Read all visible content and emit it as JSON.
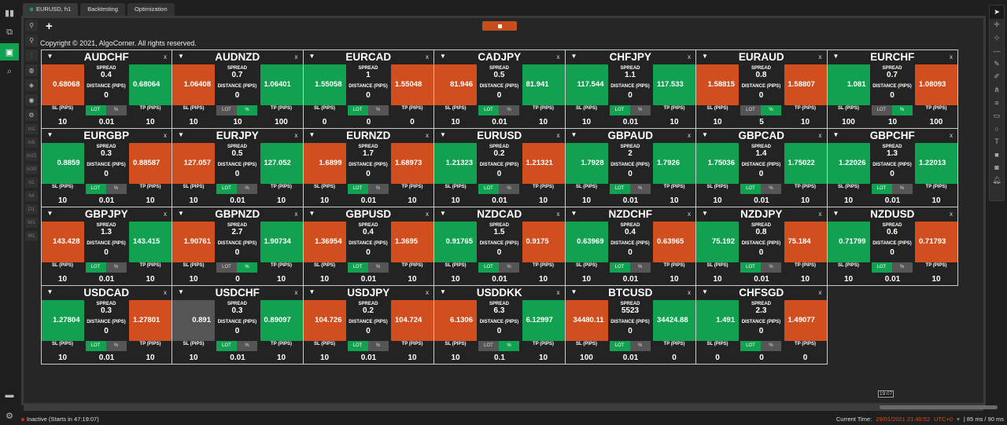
{
  "app": {
    "sidebar_icons": [
      "chart-icon",
      "copy-icon",
      "robot-icon",
      "search-chart-icon"
    ],
    "bottom_icons": [
      "briefcase-icon",
      "gear-icon"
    ]
  },
  "tabs": [
    {
      "label": "EURUSD, h1",
      "active": true
    },
    {
      "label": "Backtesting"
    },
    {
      "label": "Optimization"
    }
  ],
  "toolbar": {
    "timeframes": [
      "m1",
      "m5",
      "m15",
      "m30",
      "h1",
      "h4",
      "D1",
      "W1",
      "M1"
    ],
    "add_label": "+"
  },
  "copyright": "Copyright © 2021, AlgoCorner. All rights reserved.",
  "labels": {
    "spread": "SPREAD",
    "distance": "DISTANCE (PIPS)",
    "sl": "SL (PIPS)",
    "tp": "TP (PIPS)",
    "lot": "LOT",
    "pct": "%",
    "close": "x",
    "menu": "▼"
  },
  "colors": {
    "orange": "#d14f1f",
    "green": "#12a150",
    "gray": "#555555"
  },
  "cards": [
    {
      "symbol": "AUDCHF",
      "sell": "0.68068",
      "sell_color": "orange",
      "spread": "0.4",
      "distance": "0",
      "buy": "0.68064",
      "buy_color": "green",
      "sl": "10",
      "size": "0.01",
      "tp": "10",
      "mode": "lot"
    },
    {
      "symbol": "AUDNZD",
      "sell": "1.06408",
      "sell_color": "orange",
      "spread": "0.7",
      "distance": "0",
      "buy": "1.06401",
      "buy_color": "green",
      "sl": "10",
      "size": "10",
      "tp": "100",
      "mode": "pct"
    },
    {
      "symbol": "EURCAD",
      "sell": "1.55058",
      "sell_color": "green",
      "spread": "1",
      "distance": "0",
      "buy": "1.55048",
      "buy_color": "orange",
      "sl": "0",
      "size": "0",
      "tp": "0",
      "mode": "lot"
    },
    {
      "symbol": "CADJPY",
      "sell": "81.946",
      "sell_color": "orange",
      "spread": "0.5",
      "distance": "0",
      "buy": "81.941",
      "buy_color": "green",
      "sl": "10",
      "size": "0.01",
      "tp": "10",
      "mode": "lot"
    },
    {
      "symbol": "CHFJPY",
      "sell": "117.544",
      "sell_color": "green",
      "spread": "1.1",
      "distance": "0",
      "buy": "117.533",
      "buy_color": "green",
      "sl": "10",
      "size": "0.01",
      "tp": "10",
      "mode": "lot"
    },
    {
      "symbol": "EURAUD",
      "sell": "1.58815",
      "sell_color": "orange",
      "spread": "0.8",
      "distance": "0",
      "buy": "1.58807",
      "buy_color": "orange",
      "sl": "10",
      "size": "5",
      "tp": "10",
      "mode": "pct"
    },
    {
      "symbol": "EURCHF",
      "sell": "1.081",
      "sell_color": "green",
      "spread": "0.7",
      "distance": "0",
      "buy": "1.08093",
      "buy_color": "orange",
      "sl": "100",
      "size": "10",
      "tp": "100",
      "mode": "pct"
    },
    {
      "symbol": "EURGBP",
      "sell": "0.8859",
      "sell_color": "green",
      "spread": "0.3",
      "distance": "0",
      "buy": "0.88587",
      "buy_color": "orange",
      "sl": "10",
      "size": "0.01",
      "tp": "10",
      "mode": "lot"
    },
    {
      "symbol": "EURJPY",
      "sell": "127.057",
      "sell_color": "orange",
      "spread": "0.5",
      "distance": "0",
      "buy": "127.052",
      "buy_color": "green",
      "sl": "10",
      "size": "0.01",
      "tp": "10",
      "mode": "lot"
    },
    {
      "symbol": "EURNZD",
      "sell": "1.6899",
      "sell_color": "orange",
      "spread": "1.7",
      "distance": "0",
      "buy": "1.68973",
      "buy_color": "orange",
      "sl": "10",
      "size": "0.01",
      "tp": "10",
      "mode": "lot"
    },
    {
      "symbol": "EURUSD",
      "sell": "1.21323",
      "sell_color": "green",
      "spread": "0.2",
      "distance": "0",
      "buy": "1.21321",
      "buy_color": "orange",
      "sl": "10",
      "size": "0.01",
      "tp": "10",
      "mode": "lot"
    },
    {
      "symbol": "GBPAUD",
      "sell": "1.7928",
      "sell_color": "green",
      "spread": "2",
      "distance": "0",
      "buy": "1.7926",
      "buy_color": "green",
      "sl": "10",
      "size": "0.01",
      "tp": "10",
      "mode": "lot"
    },
    {
      "symbol": "GBPCAD",
      "sell": "1.75036",
      "sell_color": "green",
      "spread": "1.4",
      "distance": "0",
      "buy": "1.75022",
      "buy_color": "green",
      "sl": "10",
      "size": "0.01",
      "tp": "10",
      "mode": "lot"
    },
    {
      "symbol": "GBPCHF",
      "sell": "1.22026",
      "sell_color": "green",
      "spread": "1.3",
      "distance": "0",
      "buy": "1.22013",
      "buy_color": "green",
      "sl": "10",
      "size": "0.01",
      "tp": "10",
      "mode": "lot"
    },
    {
      "symbol": "GBPJPY",
      "sell": "143.428",
      "sell_color": "orange",
      "spread": "1.3",
      "distance": "0",
      "buy": "143.415",
      "buy_color": "green",
      "sl": "10",
      "size": "0.01",
      "tp": "10",
      "mode": "lot"
    },
    {
      "symbol": "GBPNZD",
      "sell": "1.90761",
      "sell_color": "orange",
      "spread": "2.7",
      "distance": "0",
      "buy": "1.90734",
      "buy_color": "green",
      "sl": "10",
      "size": "0",
      "tp": "10",
      "mode": "pct"
    },
    {
      "symbol": "GBPUSD",
      "sell": "1.36954",
      "sell_color": "orange",
      "spread": "0.4",
      "distance": "0",
      "buy": "1.3695",
      "buy_color": "orange",
      "sl": "10",
      "size": "0.01",
      "tp": "10",
      "mode": "lot"
    },
    {
      "symbol": "NZDCAD",
      "sell": "0.91765",
      "sell_color": "green",
      "spread": "1.5",
      "distance": "0",
      "buy": "0.9175",
      "buy_color": "orange",
      "sl": "10",
      "size": "0.01",
      "tp": "10",
      "mode": "lot"
    },
    {
      "symbol": "NZDCHF",
      "sell": "0.63969",
      "sell_color": "green",
      "spread": "0.4",
      "distance": "0",
      "buy": "0.63965",
      "buy_color": "orange",
      "sl": "10",
      "size": "0.01",
      "tp": "10",
      "mode": "lot"
    },
    {
      "symbol": "NZDJPY",
      "sell": "75.192",
      "sell_color": "green",
      "spread": "0.8",
      "distance": "0",
      "buy": "75.184",
      "buy_color": "orange",
      "sl": "10",
      "size": "0.01",
      "tp": "10",
      "mode": "lot"
    },
    {
      "symbol": "NZDUSD",
      "sell": "0.71799",
      "sell_color": "green",
      "spread": "0.6",
      "distance": "0",
      "buy": "0.71793",
      "buy_color": "orange",
      "sl": "10",
      "size": "0.01",
      "tp": "10",
      "mode": "lot"
    },
    {
      "symbol": "USDCAD",
      "sell": "1.27804",
      "sell_color": "green",
      "spread": "0.3",
      "distance": "0",
      "buy": "1.27801",
      "buy_color": "orange",
      "sl": "10",
      "size": "0.01",
      "tp": "10",
      "mode": "lot"
    },
    {
      "symbol": "USDCHF",
      "sell": "0.891",
      "sell_color": "gray",
      "spread": "0.3",
      "distance": "0",
      "buy": "0.89097",
      "buy_color": "green",
      "sl": "10",
      "size": "0.01",
      "tp": "10",
      "mode": "lot"
    },
    {
      "symbol": "USDJPY",
      "sell": "104.726",
      "sell_color": "orange",
      "spread": "0.2",
      "distance": "0",
      "buy": "104.724",
      "buy_color": "orange",
      "sl": "10",
      "size": "0.01",
      "tp": "10",
      "mode": "lot"
    },
    {
      "symbol": "USDDKK",
      "sell": "6.1306",
      "sell_color": "orange",
      "spread": "6.3",
      "distance": "0",
      "buy": "6.12997",
      "buy_color": "green",
      "sl": "10",
      "size": "0.1",
      "tp": "10",
      "mode": "pct"
    },
    {
      "symbol": "BTCUSD",
      "sell": "34480.11",
      "sell_color": "orange",
      "spread": "5523",
      "distance": "0",
      "buy": "34424.88",
      "buy_color": "green",
      "sl": "100",
      "size": "0.01",
      "tp": "0",
      "mode": "lot"
    },
    {
      "symbol": "CHFSGD",
      "sell": "1.491",
      "sell_color": "green",
      "spread": "2.3",
      "distance": "0",
      "buy": "1.49077",
      "buy_color": "orange",
      "sl": "0",
      "size": "0",
      "tp": "0",
      "mode": "lot"
    }
  ],
  "chart": {
    "time_marker": "19:07"
  },
  "status": {
    "state": "Inactive (Starts in 47:19:07)",
    "current_time_label": "Current Time:",
    "current_time": "29/01/2021 21:40:52",
    "timezone": "UTC+0",
    "latency": "| 85 ms / 90 ms"
  }
}
